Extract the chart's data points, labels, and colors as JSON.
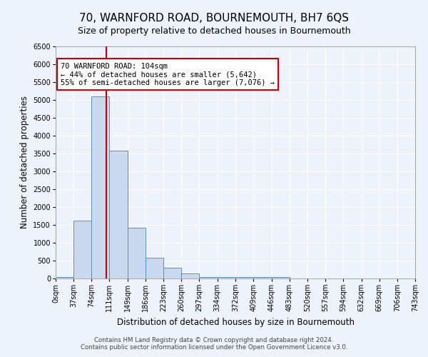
{
  "title": "70, WARNFORD ROAD, BOURNEMOUTH, BH7 6QS",
  "subtitle": "Size of property relative to detached houses in Bournemouth",
  "xlabel": "Distribution of detached houses by size in Bournemouth",
  "ylabel": "Number of detached properties",
  "bin_edges": [
    0,
    37,
    74,
    111,
    149,
    186,
    223,
    260,
    297,
    334,
    372,
    409,
    446,
    483,
    520,
    557,
    594,
    632,
    669,
    706,
    743
  ],
  "bar_heights": [
    50,
    1625,
    5100,
    3580,
    1420,
    580,
    300,
    145,
    50,
    50,
    50,
    50,
    50,
    0,
    0,
    0,
    0,
    0,
    0,
    0
  ],
  "bar_color": "#c9d9f0",
  "bar_edgecolor": "#5b8fcc",
  "property_line_x": 104,
  "property_line_color": "#cc0000",
  "annotation_text": "70 WARNFORD ROAD: 104sqm\n← 44% of detached houses are smaller (5,642)\n55% of semi-detached houses are larger (7,076) →",
  "annotation_box_color": "#ffffff",
  "annotation_box_edgecolor": "#cc0000",
  "ylim": [
    0,
    6500
  ],
  "yticks": [
    0,
    500,
    1000,
    1500,
    2000,
    2500,
    3000,
    3500,
    4000,
    4500,
    5000,
    5500,
    6000,
    6500
  ],
  "tick_labels": [
    "0sqm",
    "37sqm",
    "74sqm",
    "111sqm",
    "149sqm",
    "186sqm",
    "223sqm",
    "260sqm",
    "297sqm",
    "334sqm",
    "372sqm",
    "409sqm",
    "446sqm",
    "483sqm",
    "520sqm",
    "557sqm",
    "594sqm",
    "632sqm",
    "669sqm",
    "706sqm",
    "743sqm"
  ],
  "footer_line1": "Contains HM Land Registry data © Crown copyright and database right 2024.",
  "footer_line2": "Contains public sector information licensed under the Open Government Licence v3.0.",
  "background_color": "#eef2fa",
  "grid_color": "#ffffff",
  "title_fontsize": 11,
  "subtitle_fontsize": 9,
  "axis_label_fontsize": 8.5,
  "tick_fontsize": 7
}
